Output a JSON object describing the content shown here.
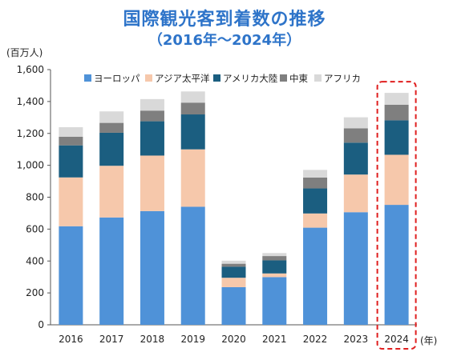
{
  "title": "国際観光客到着数の推移",
  "subtitle": "（2016年～2024年）",
  "chart_data": {
    "type": "bar",
    "stacked": true,
    "title": "国際観光客到着数の推移",
    "subtitle": "（2016年～2024年）",
    "ylabel": "(百万人)",
    "xlabel": "(年)",
    "ylim": [
      0,
      1600
    ],
    "yticks": [
      0,
      200,
      400,
      600,
      800,
      1000,
      1200,
      1400,
      1600
    ],
    "ytick_labels": [
      "0",
      "200",
      "400",
      "600",
      "800",
      "1,000",
      "1,200",
      "1,400",
      "1,600"
    ],
    "categories": [
      "2016",
      "2017",
      "2018",
      "2019",
      "2020",
      "2021",
      "2022",
      "2023",
      "2024"
    ],
    "legend_position": "top",
    "series": [
      {
        "name": "ヨーロッパ",
        "color": "#4f92d8",
        "values": [
          618,
          673,
          713,
          740,
          236,
          299,
          609,
          706,
          752
        ]
      },
      {
        "name": "アジア太平洋",
        "color": "#f6c8ab",
        "values": [
          306,
          324,
          348,
          360,
          59,
          23,
          89,
          236,
          314
        ]
      },
      {
        "name": "アメリカ大陸",
        "color": "#1b5e80",
        "values": [
          201,
          207,
          215,
          219,
          69,
          82,
          157,
          200,
          216
        ]
      },
      {
        "name": "中東",
        "color": "#7f7f7f",
        "values": [
          54,
          62,
          67,
          74,
          19,
          27,
          68,
          90,
          98
        ]
      },
      {
        "name": "アフリカ",
        "color": "#d9d9d9",
        "values": [
          60,
          72,
          72,
          70,
          19,
          19,
          48,
          69,
          74
        ]
      }
    ],
    "highlight_category": "2024",
    "grid": false
  }
}
